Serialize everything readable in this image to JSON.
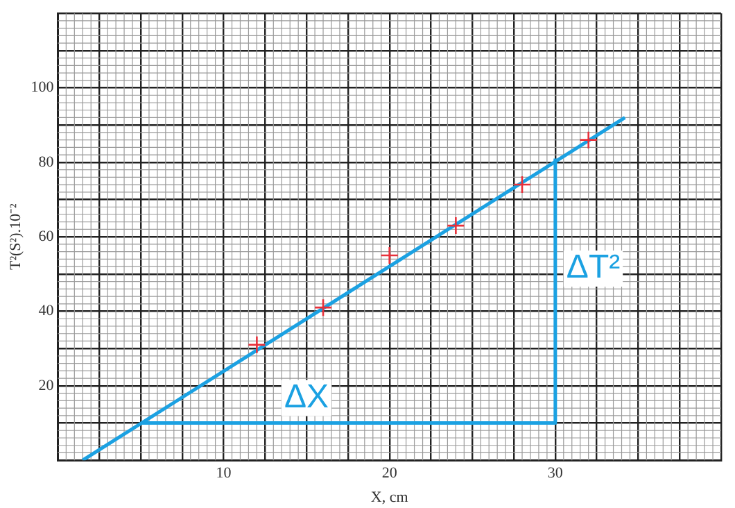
{
  "chart_data": {
    "type": "scatter",
    "xlabel": "X, cm",
    "ylabel": "T²(S²).10⁻²",
    "xlim": [
      0,
      40
    ],
    "ylim": [
      0,
      120
    ],
    "xticks": [
      {
        "value": 0,
        "label": null
      },
      {
        "value": 2.5,
        "label": null
      },
      {
        "value": 5,
        "label": null
      },
      {
        "value": 7.5,
        "label": null
      },
      10,
      {
        "value": 12.5,
        "label": null
      },
      {
        "value": 15,
        "label": null
      },
      {
        "value": 17.5,
        "label": null
      },
      20,
      {
        "value": 22.5,
        "label": null
      },
      {
        "value": 25,
        "label": null
      },
      {
        "value": 27.5,
        "label": null
      },
      30,
      {
        "value": 32.5,
        "label": null
      },
      {
        "value": 35,
        "label": null
      },
      {
        "value": 37.5,
        "label": null
      },
      {
        "value": 40,
        "label": null
      }
    ],
    "yticks": [
      {
        "value": 0,
        "label": null
      },
      {
        "value": 10,
        "label": null
      },
      20,
      {
        "value": 30,
        "label": null
      },
      40,
      {
        "value": 50,
        "label": null
      },
      60,
      {
        "value": 70,
        "label": null
      },
      80,
      {
        "value": 90,
        "label": null
      },
      100,
      {
        "value": 110,
        "label": null
      },
      {
        "value": 120,
        "label": null
      }
    ],
    "grid": true,
    "legend": false,
    "series": [
      {
        "marker": "cross",
        "color": "#e8303a",
        "x": [
          12,
          16,
          20,
          24,
          28,
          32
        ],
        "values": [
          31,
          41,
          55,
          63,
          74,
          86
        ]
      },
      {
        "type": "line",
        "marker": "none",
        "color": "#1ba1e2",
        "x": [
          1.5,
          34.2
        ],
        "values": [
          0,
          92
        ]
      },
      {
        "type": "line",
        "marker": "none",
        "color": "#1ba1e2",
        "x": [
          5,
          30,
          30
        ],
        "values": [
          10,
          10,
          81
        ]
      }
    ],
    "annotations": [
      "ΔX",
      "ΔT²"
    ]
  }
}
